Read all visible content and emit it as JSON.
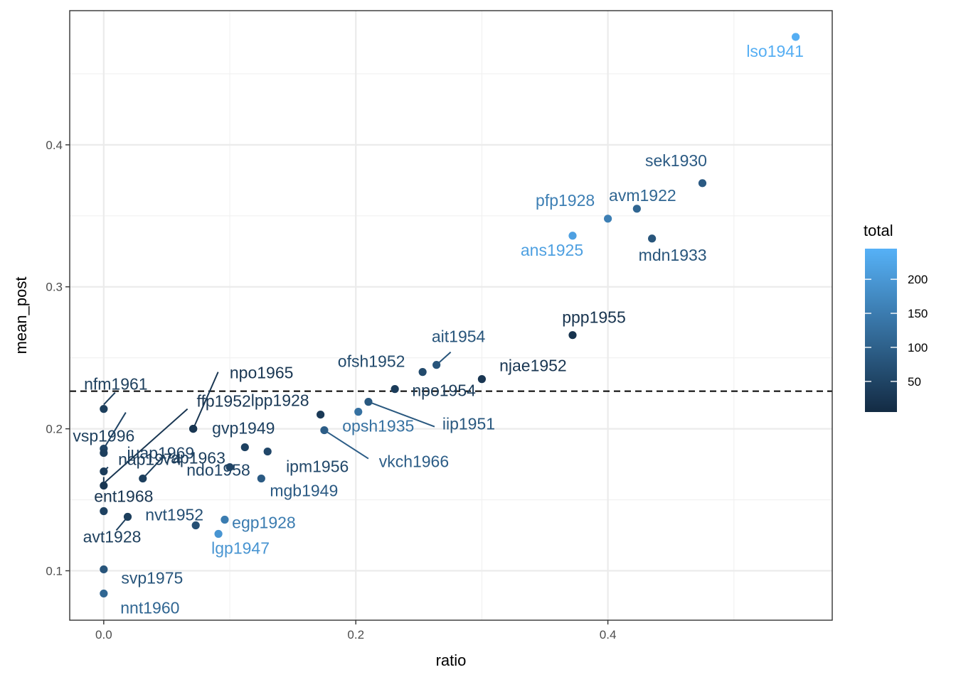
{
  "chart_data": {
    "type": "scatter",
    "title": "",
    "xlabel": "ratio",
    "ylabel": "mean_post",
    "xlim": [
      -0.027,
      0.578
    ],
    "ylim": [
      0.0652,
      0.4945
    ],
    "x_ticks": [
      0.0,
      0.2,
      0.4
    ],
    "x_tick_labels": [
      "0.0",
      "0.2",
      "0.4"
    ],
    "y_ticks": [
      0.1,
      0.2,
      0.3,
      0.4
    ],
    "y_tick_labels": [
      "0.1",
      "0.2",
      "0.3",
      "0.4"
    ],
    "grid": true,
    "reference_line": {
      "type": "hline",
      "y": 0.2265,
      "style": "dashed",
      "color": "#000000"
    },
    "color_legend": {
      "title": "total",
      "position": "right",
      "range": [
        5,
        245
      ],
      "ticks": [
        50,
        100,
        150,
        200
      ],
      "tick_labels": [
        "50",
        "100",
        "150",
        "200"
      ],
      "low_color": "#132B43",
      "high_color": "#56B1F7"
    },
    "points": [
      {
        "label": "lso1941",
        "x": 0.549,
        "y": 0.476,
        "total": 240
      },
      {
        "label": "sek1930",
        "x": 0.475,
        "y": 0.373,
        "total": 90
      },
      {
        "label": "avm1922",
        "x": 0.423,
        "y": 0.355,
        "total": 110
      },
      {
        "label": "pfp1928",
        "x": 0.4,
        "y": 0.348,
        "total": 155
      },
      {
        "label": "ans1925",
        "x": 0.372,
        "y": 0.336,
        "total": 215
      },
      {
        "label": "mdn1933",
        "x": 0.435,
        "y": 0.334,
        "total": 80
      },
      {
        "label": "ppp1955",
        "x": 0.372,
        "y": 0.266,
        "total": 20
      },
      {
        "label": "ait1954",
        "x": 0.264,
        "y": 0.245,
        "total": 80
      },
      {
        "label": "ofsh1952",
        "x": 0.253,
        "y": 0.24,
        "total": 60
      },
      {
        "label": "njae1952",
        "x": 0.3,
        "y": 0.235,
        "total": 25
      },
      {
        "label": "npo1954",
        "x": 0.231,
        "y": 0.228,
        "total": 35
      },
      {
        "label": "iip1951",
        "x": 0.21,
        "y": 0.219,
        "total": 85
      },
      {
        "label": "opsh1935",
        "x": 0.202,
        "y": 0.212,
        "total": 130
      },
      {
        "label": "lpp1928",
        "x": 0.172,
        "y": 0.21,
        "total": 30
      },
      {
        "label": "vkch1966",
        "x": 0.175,
        "y": 0.199,
        "total": 95
      },
      {
        "label": "gvp1949",
        "x": 0.112,
        "y": 0.187,
        "total": 45
      },
      {
        "label": "ipm1956",
        "x": 0.13,
        "y": 0.184,
        "total": 55
      },
      {
        "label": "ndo1958",
        "x": 0.1,
        "y": 0.173,
        "total": 50
      },
      {
        "label": "mgb1949",
        "x": 0.125,
        "y": 0.165,
        "total": 90
      },
      {
        "label": "npo1965",
        "x": 0.071,
        "y": 0.2,
        "total": 25
      },
      {
        "label": "ffp1952",
        "x": 0.071,
        "y": 0.2,
        "total": 25
      },
      {
        "label": "vap1963",
        "x": 0.031,
        "y": 0.165,
        "total": 40
      },
      {
        "label": "nvt1952",
        "x": 0.073,
        "y": 0.132,
        "total": 70
      },
      {
        "label": "egp1928",
        "x": 0.096,
        "y": 0.136,
        "total": 150
      },
      {
        "label": "lgp1947",
        "x": 0.091,
        "y": 0.126,
        "total": 195
      },
      {
        "label": "avt1928",
        "x": 0.019,
        "y": 0.138,
        "total": 40
      },
      {
        "label": "nfm1961",
        "x": 0.0,
        "y": 0.214,
        "total": 40
      },
      {
        "label": "juap1969",
        "x": 0.0,
        "y": 0.186,
        "total": 50
      },
      {
        "label": "vsp1996",
        "x": 0.0,
        "y": 0.183,
        "total": 40
      },
      {
        "label": "nap1974",
        "x": 0.0,
        "y": 0.17,
        "total": 35
      },
      {
        "label": "ent1968",
        "x": 0.0,
        "y": 0.16,
        "total": 25
      },
      {
        "label": "",
        "x": 0.0,
        "y": 0.142,
        "total": 45
      },
      {
        "label": "svp1975",
        "x": 0.0,
        "y": 0.101,
        "total": 80
      },
      {
        "label": "nnt1960",
        "x": 0.0,
        "y": 0.084,
        "total": 110
      }
    ]
  }
}
